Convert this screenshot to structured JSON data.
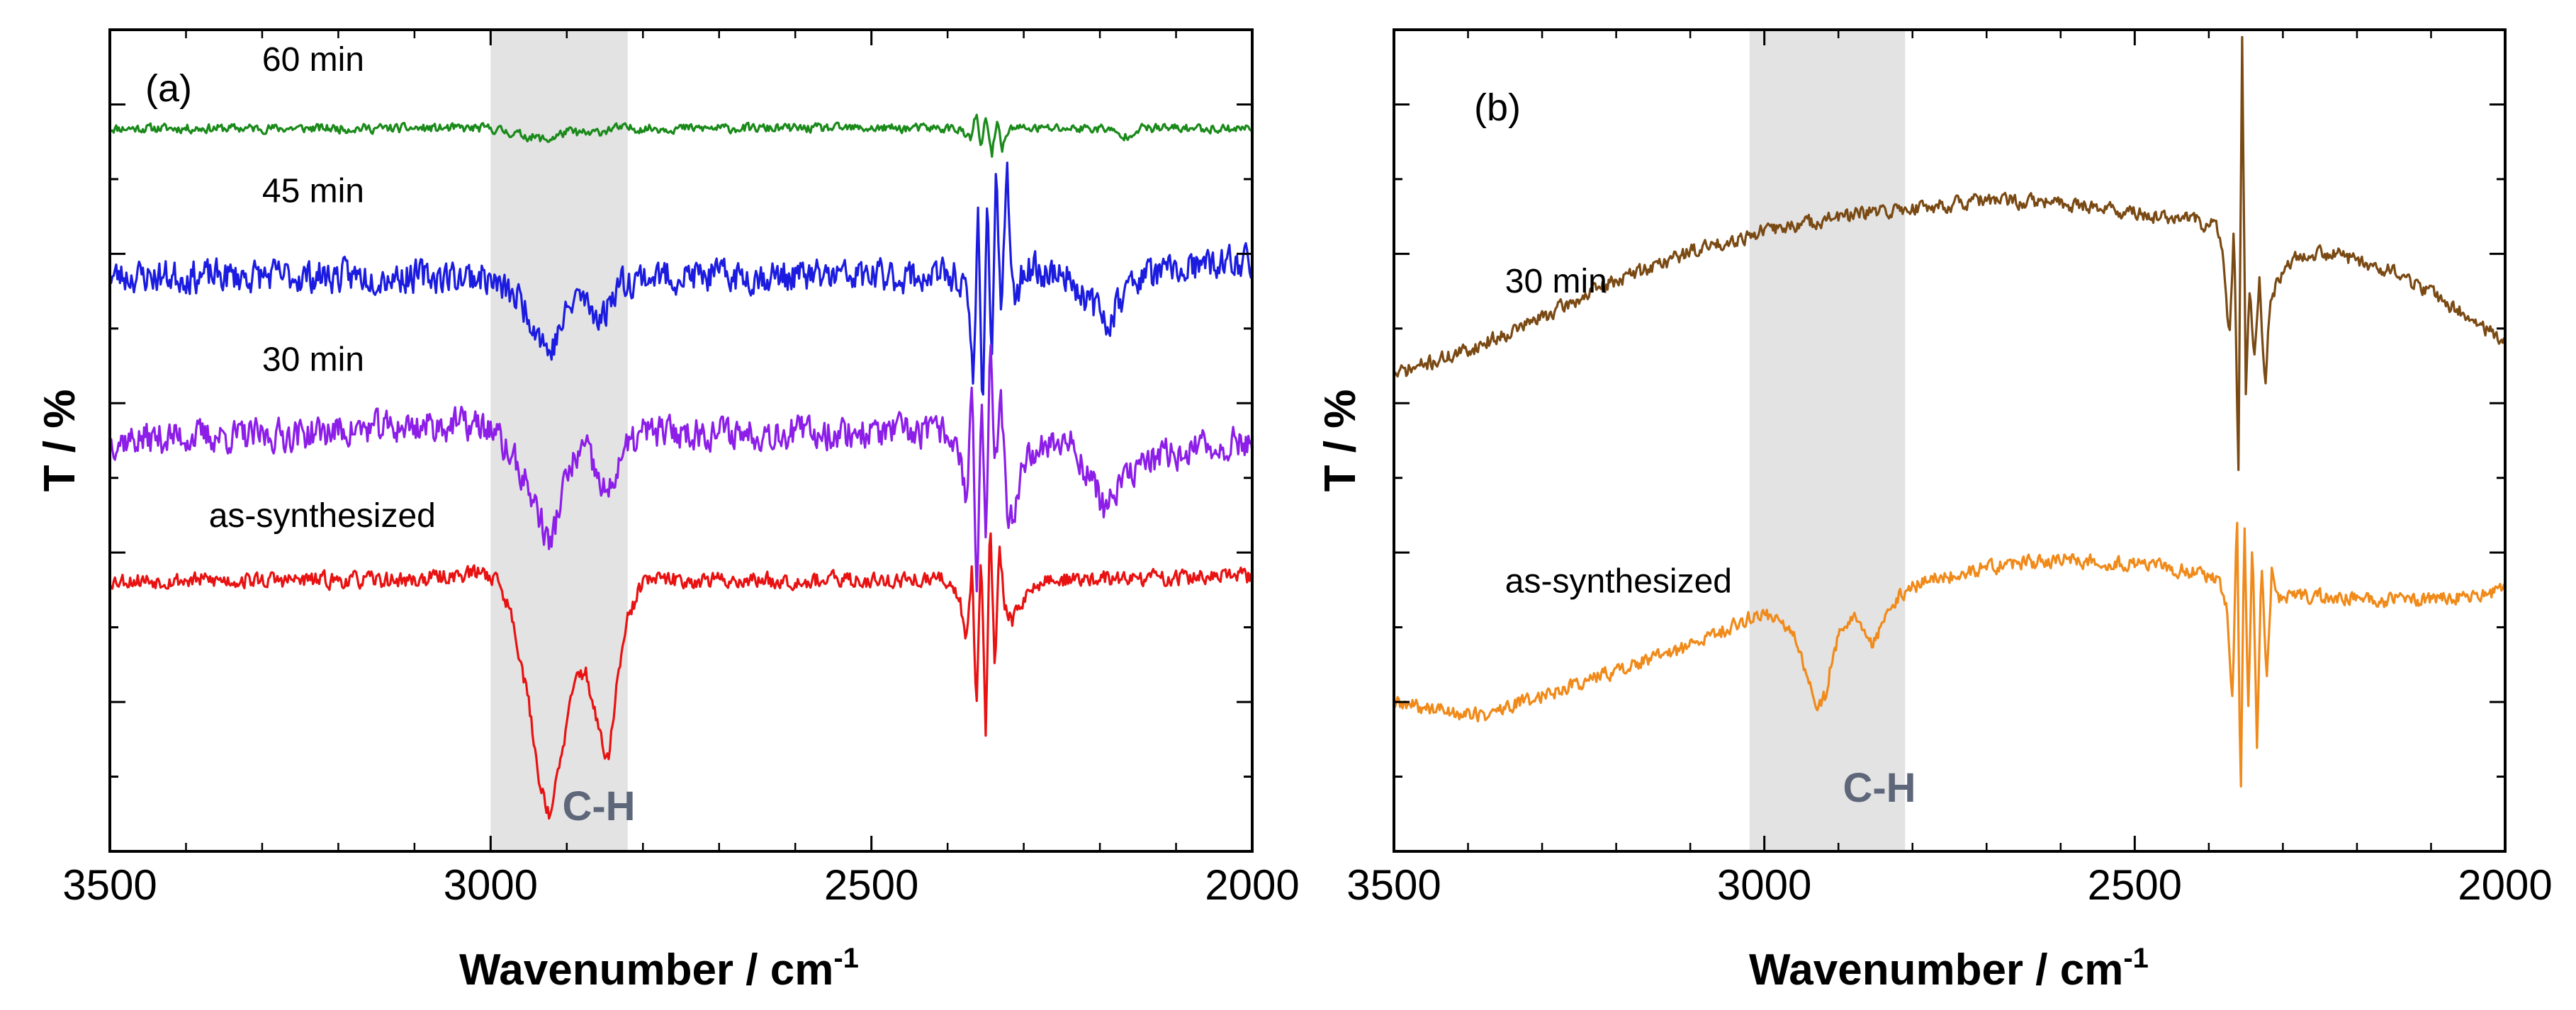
{
  "chart_data": [
    {
      "type": "line",
      "panel_label": "(a)",
      "xlabel": "Wavenumber / cm",
      "xlabel_superscript": "-1",
      "ylabel": "T / %",
      "xlim": [
        3500,
        2000
      ],
      "x_ticks": [
        "3500",
        "3000",
        "2500",
        "2000"
      ],
      "x_tick_values": [
        3500,
        3000,
        2500,
        2000
      ],
      "ylim": [
        0,
        100
      ],
      "shaded_band": {
        "from": 3000,
        "to": 2820,
        "label": "C-H",
        "color": "#e3e3e3"
      },
      "series": [
        {
          "name": "60 min",
          "color": "#1a8a1a",
          "label_x": 3300,
          "label_y": 95,
          "baseline": 88,
          "noise": 0.5,
          "seed": 11,
          "points": [
            [
              3500,
              88
            ],
            [
              3000,
              88
            ],
            [
              2960,
              87.2
            ],
            [
              2925,
              86.6
            ],
            [
              2900,
              87.6
            ],
            [
              2870,
              87.3
            ],
            [
              2840,
              88
            ],
            [
              2560,
              88
            ],
            [
              2385,
              88
            ],
            [
              2370,
              86.5
            ],
            [
              2362,
              90
            ],
            [
              2356,
              85
            ],
            [
              2350,
              89.5
            ],
            [
              2342,
              84.5
            ],
            [
              2335,
              89
            ],
            [
              2328,
              85.5
            ],
            [
              2320,
              88
            ],
            [
              2190,
              88
            ],
            [
              2170,
              86.8
            ],
            [
              2150,
              88
            ],
            [
              2000,
              88
            ]
          ]
        },
        {
          "name": "45 min",
          "color": "#1c1ce0",
          "label_x": 3300,
          "label_y": 79,
          "baseline": 70,
          "noise": 1.8,
          "seed": 23,
          "points": [
            [
              3500,
              70
            ],
            [
              3010,
              70
            ],
            [
              2960,
              67
            ],
            [
              2935,
              63
            ],
            [
              2922,
              60.5
            ],
            [
              2905,
              64.5
            ],
            [
              2885,
              68
            ],
            [
              2868,
              66
            ],
            [
              2852,
              65
            ],
            [
              2835,
              69
            ],
            [
              2800,
              70
            ],
            [
              2385,
              70
            ],
            [
              2372,
              66
            ],
            [
              2366,
              56
            ],
            [
              2360,
              78
            ],
            [
              2354,
              54
            ],
            [
              2348,
              80
            ],
            [
              2342,
              60
            ],
            [
              2336,
              84
            ],
            [
              2330,
              64
            ],
            [
              2322,
              82
            ],
            [
              2312,
              66
            ],
            [
              2300,
              71
            ],
            [
              2240,
              70
            ],
            [
              2215,
              67
            ],
            [
              2190,
              64.5
            ],
            [
              2175,
              67
            ],
            [
              2150,
              70
            ],
            [
              2000,
              72
            ]
          ]
        },
        {
          "name": "30 min",
          "color": "#8c1ee8",
          "label_x": 3300,
          "label_y": 58.5,
          "baseline": 51,
          "noise": 1.8,
          "seed": 37,
          "points": [
            [
              3500,
              50
            ],
            [
              3400,
              50.5
            ],
            [
              3300,
              50.5
            ],
            [
              3150,
              51.5
            ],
            [
              3040,
              52
            ],
            [
              3000,
              51.5
            ],
            [
              2965,
              47
            ],
            [
              2940,
              42
            ],
            [
              2922,
              37
            ],
            [
              2905,
              44
            ],
            [
              2888,
              48
            ],
            [
              2875,
              49
            ],
            [
              2858,
              45
            ],
            [
              2845,
              43
            ],
            [
              2830,
              48
            ],
            [
              2800,
              51
            ],
            [
              2400,
              51
            ],
            [
              2385,
              49
            ],
            [
              2375,
              42
            ],
            [
              2368,
              58
            ],
            [
              2362,
              30
            ],
            [
              2355,
              55
            ],
            [
              2350,
              36
            ],
            [
              2344,
              62
            ],
            [
              2338,
              46
            ],
            [
              2330,
              55
            ],
            [
              2320,
              38
            ],
            [
              2308,
              44
            ],
            [
              2295,
              49
            ],
            [
              2240,
              50
            ],
            [
              2215,
              46
            ],
            [
              2195,
              42
            ],
            [
              2180,
              43.5
            ],
            [
              2150,
              47
            ],
            [
              2100,
              48.5
            ],
            [
              2000,
              50
            ]
          ]
        },
        {
          "name": "as-synthesized",
          "color": "#e81212",
          "label_x": 3370,
          "label_y": 39.5,
          "baseline": 33,
          "noise": 0.9,
          "seed": 53,
          "points": [
            [
              3500,
              33
            ],
            [
              3100,
              33
            ],
            [
              3010,
              34
            ],
            [
              2990,
              33
            ],
            [
              2970,
              28
            ],
            [
              2950,
              18
            ],
            [
              2935,
              8
            ],
            [
              2922,
              4.5
            ],
            [
              2910,
              10
            ],
            [
              2895,
              18
            ],
            [
              2885,
              22
            ],
            [
              2875,
              21.5
            ],
            [
              2865,
              18
            ],
            [
              2852,
              12
            ],
            [
              2845,
              11
            ],
            [
              2835,
              20
            ],
            [
              2820,
              28
            ],
            [
              2800,
              33
            ],
            [
              2400,
              33
            ],
            [
              2385,
              31
            ],
            [
              2375,
              26
            ],
            [
              2368,
              35
            ],
            [
              2362,
              17
            ],
            [
              2356,
              37
            ],
            [
              2350,
              15
            ],
            [
              2344,
              41
            ],
            [
              2338,
              21
            ],
            [
              2332,
              37
            ],
            [
              2325,
              30
            ],
            [
              2315,
              28
            ],
            [
              2300,
              31
            ],
            [
              2270,
              33
            ],
            [
              2000,
              33.5
            ]
          ]
        }
      ]
    },
    {
      "type": "line",
      "panel_label": "(b)",
      "xlabel": "Wavenumber / cm",
      "xlabel_superscript": "-1",
      "ylabel": "T / %",
      "xlim": [
        3500,
        2000
      ],
      "x_ticks": [
        "3500",
        "3000",
        "2500",
        "2000"
      ],
      "x_tick_values": [
        3500,
        3000,
        2500,
        2000
      ],
      "ylim": [
        0,
        100
      ],
      "shaded_band": {
        "from": 3020,
        "to": 2810,
        "label": "C-H",
        "color": "#e3e3e3"
      },
      "series": [
        {
          "name": "30 min",
          "color": "#7a4a14",
          "label_x": 3350,
          "label_y": 68,
          "baseline": 60,
          "noise": 0.8,
          "seed": 71,
          "points": [
            [
              3500,
              58
            ],
            [
              3400,
              61
            ],
            [
              3300,
              65
            ],
            [
              3200,
              69.5
            ],
            [
              3100,
              73
            ],
            [
              3000,
              75.5
            ],
            [
              2900,
              77.2
            ],
            [
              2800,
              78.3
            ],
            [
              2700,
              79.2
            ],
            [
              2620,
              79
            ],
            [
              2560,
              78.6
            ],
            [
              2500,
              77.6
            ],
            [
              2420,
              76.8
            ],
            [
              2390,
              76
            ],
            [
              2380,
              72
            ],
            [
              2372,
              62
            ],
            [
              2366,
              76
            ],
            [
              2360,
              46
            ],
            [
              2355,
              100
            ],
            [
              2350,
              55
            ],
            [
              2345,
              68
            ],
            [
              2338,
              60
            ],
            [
              2332,
              70
            ],
            [
              2324,
              56
            ],
            [
              2318,
              66
            ],
            [
              2312,
              68
            ],
            [
              2300,
              71
            ],
            [
              2280,
              72.5
            ],
            [
              2250,
              73
            ],
            [
              2200,
              72
            ],
            [
              2150,
              70.5
            ],
            [
              2100,
              68
            ],
            [
              2050,
              65
            ],
            [
              2000,
              62
            ]
          ]
        },
        {
          "name": "as-synthesized",
          "color": "#f08a1a",
          "label_x": 3350,
          "label_y": 31.5,
          "baseline": 27,
          "noise": 0.8,
          "seed": 89,
          "points": [
            [
              3500,
              18
            ],
            [
              3420,
              17
            ],
            [
              3380,
              16.5
            ],
            [
              3300,
              19
            ],
            [
              3200,
              22
            ],
            [
              3100,
              25
            ],
            [
              3030,
              28
            ],
            [
              3000,
              29
            ],
            [
              2980,
              28.5
            ],
            [
              2960,
              26
            ],
            [
              2945,
              22
            ],
            [
              2930,
              17.5
            ],
            [
              2918,
              19
            ],
            [
              2905,
              25
            ],
            [
              2890,
              28
            ],
            [
              2880,
              29
            ],
            [
              2865,
              26
            ],
            [
              2855,
              25
            ],
            [
              2840,
              28
            ],
            [
              2820,
              31
            ],
            [
              2780,
              33
            ],
            [
              2700,
              34.5
            ],
            [
              2600,
              35.5
            ],
            [
              2500,
              35
            ],
            [
              2420,
              34
            ],
            [
              2385,
              33
            ],
            [
              2375,
              29
            ],
            [
              2368,
              18
            ],
            [
              2362,
              42
            ],
            [
              2357,
              5
            ],
            [
              2352,
              40
            ],
            [
              2347,
              16
            ],
            [
              2341,
              38
            ],
            [
              2335,
              12
            ],
            [
              2329,
              36
            ],
            [
              2322,
              20
            ],
            [
              2315,
              34
            ],
            [
              2305,
              31
            ],
            [
              2250,
              31
            ],
            [
              2150,
              30.5
            ],
            [
              2050,
              31
            ],
            [
              2000,
              32
            ]
          ]
        }
      ]
    }
  ]
}
